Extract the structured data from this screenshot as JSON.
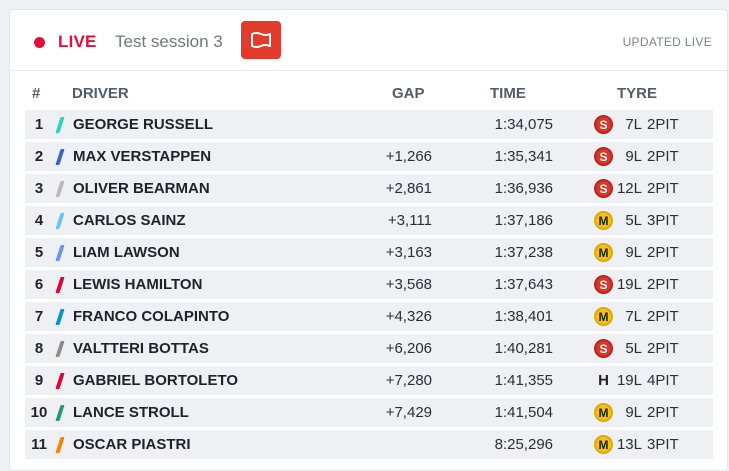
{
  "header": {
    "live_label": "LIVE",
    "session_label": "Test session 3",
    "flag_icon": "flag-icon",
    "updated_label": "UPDATED LIVE"
  },
  "colors": {
    "live_red": "#e0103a",
    "flag_button": "#e33b2b",
    "soft": "#d9372c",
    "medium": "#f2c218",
    "hard": "#ffffff"
  },
  "table": {
    "headers": {
      "pos": "#",
      "driver": "DRIVER",
      "gap": "GAP",
      "time": "TIME",
      "tyre": "TYRE"
    },
    "rows": [
      {
        "pos": "1",
        "driver": "GEORGE RUSSELL",
        "team_color": "#27d8b8",
        "gap": "",
        "time": "1:34,075",
        "tyre": "S",
        "compound": "soft",
        "laps": "7L",
        "pits": "2PIT"
      },
      {
        "pos": "2",
        "driver": "MAX VERSTAPPEN",
        "team_color": "#3a64c4",
        "gap": "+1,266",
        "time": "1:35,341",
        "tyre": "S",
        "compound": "soft",
        "laps": "9L",
        "pits": "2PIT"
      },
      {
        "pos": "3",
        "driver": "OLIVER BEARMAN",
        "team_color": "#b6babd",
        "gap": "+2,861",
        "time": "1:36,936",
        "tyre": "S",
        "compound": "soft",
        "laps": "12L",
        "pits": "2PIT"
      },
      {
        "pos": "4",
        "driver": "CARLOS SAINZ",
        "team_color": "#64c4ff",
        "gap": "+3,111",
        "time": "1:37,186",
        "tyre": "M",
        "compound": "medium",
        "laps": "5L",
        "pits": "3PIT"
      },
      {
        "pos": "5",
        "driver": "LIAM LAWSON",
        "team_color": "#6692ff",
        "gap": "+3,163",
        "time": "1:37,238",
        "tyre": "M",
        "compound": "medium",
        "laps": "9L",
        "pits": "2PIT"
      },
      {
        "pos": "6",
        "driver": "LEWIS HAMILTON",
        "team_color": "#e8002d",
        "gap": "+3,568",
        "time": "1:37,643",
        "tyre": "S",
        "compound": "soft",
        "laps": "19L",
        "pits": "2PIT"
      },
      {
        "pos": "7",
        "driver": "FRANCO COLAPINTO",
        "team_color": "#0093cc",
        "gap": "+4,326",
        "time": "1:38,401",
        "tyre": "M",
        "compound": "medium",
        "laps": "7L",
        "pits": "2PIT"
      },
      {
        "pos": "8",
        "driver": "VALTTERI BOTTAS",
        "team_color": "#8c8c8c",
        "gap": "+6,206",
        "time": "1:40,281",
        "tyre": "S",
        "compound": "soft",
        "laps": "5L",
        "pits": "2PIT"
      },
      {
        "pos": "9",
        "driver": "GABRIEL BORTOLETO",
        "team_color": "#e8002d",
        "gap": "+7,280",
        "time": "1:41,355",
        "tyre": "H",
        "compound": "hard",
        "laps": "19L",
        "pits": "4PIT"
      },
      {
        "pos": "10",
        "driver": "LANCE STROLL",
        "team_color": "#229971",
        "gap": "+7,429",
        "time": "1:41,504",
        "tyre": "M",
        "compound": "medium",
        "laps": "9L",
        "pits": "2PIT"
      },
      {
        "pos": "11",
        "driver": "OSCAR PIASTRI",
        "team_color": "#ff8000",
        "gap": "",
        "time": "8:25,296",
        "tyre": "M",
        "compound": "medium",
        "laps": "13L",
        "pits": "3PIT"
      }
    ]
  }
}
